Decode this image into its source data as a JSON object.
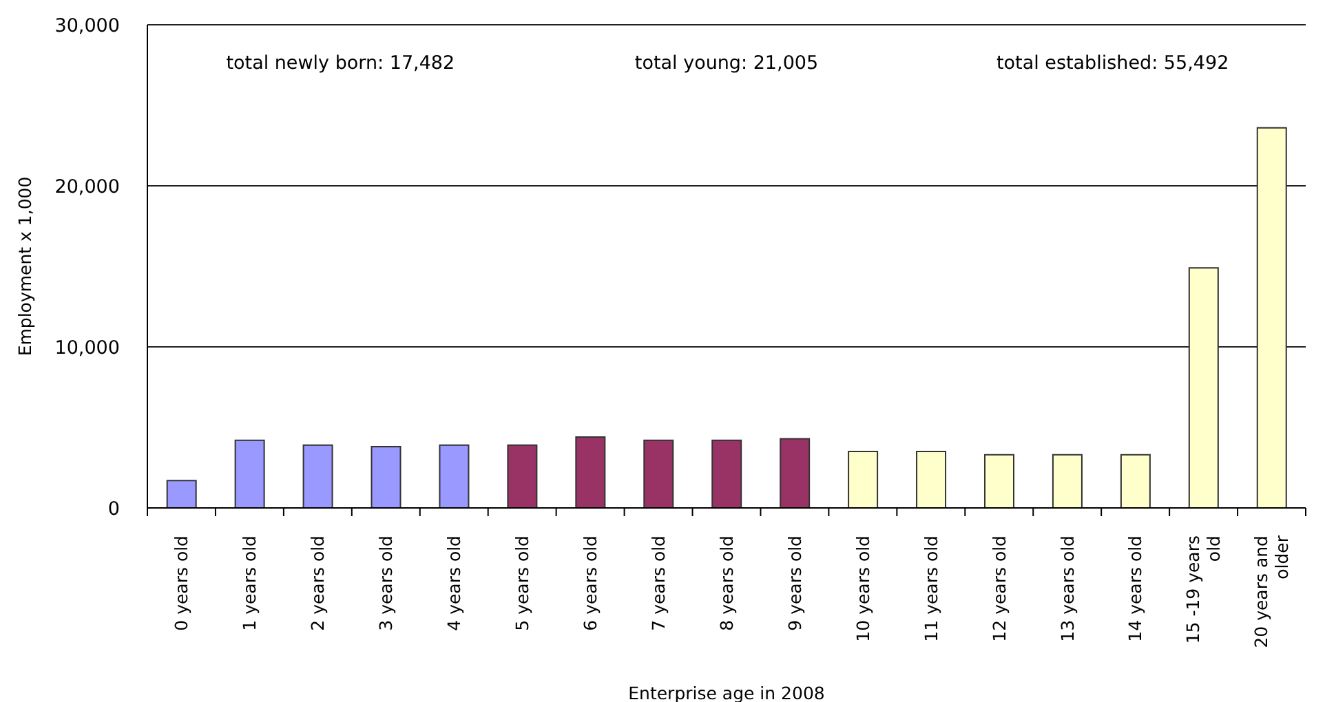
{
  "chart_data": {
    "type": "bar",
    "xlabel": "Enterprise age in 2008",
    "ylabel": "Employment x 1,000",
    "categories": [
      "0 years old",
      "1 years old",
      "2 years old",
      "3 years old",
      "4 years old",
      "5 years old",
      "6 years old",
      "7 years old",
      "8 years old",
      "9 years old",
      "10 years old",
      "11 years old",
      "12 years old",
      "13 years old",
      "14 years old",
      "15 -19 years old",
      "20 years and older"
    ],
    "values": [
      1700,
      4200,
      3900,
      3800,
      3900,
      3900,
      4400,
      4200,
      4200,
      4300,
      3500,
      3500,
      3300,
      3300,
      3300,
      14900,
      23600
    ],
    "colors": [
      "#9999ff",
      "#9999ff",
      "#9999ff",
      "#9999ff",
      "#9999ff",
      "#993366",
      "#993366",
      "#993366",
      "#993366",
      "#993366",
      "#ffffcc",
      "#ffffcc",
      "#ffffcc",
      "#ffffcc",
      "#ffffcc",
      "#ffffcc",
      "#ffffcc"
    ],
    "ylim": [
      0,
      30000
    ],
    "yticks": [
      0,
      {
        "value": 10000,
        "label": "10,000"
      },
      {
        "value": 20000,
        "label": "20,000"
      },
      {
        "value": 30000,
        "label": "30,000"
      }
    ],
    "grid": "y",
    "annotations": [
      "total newly born: 17,482",
      "total young: 21,005",
      "total established: 55,492"
    ]
  }
}
